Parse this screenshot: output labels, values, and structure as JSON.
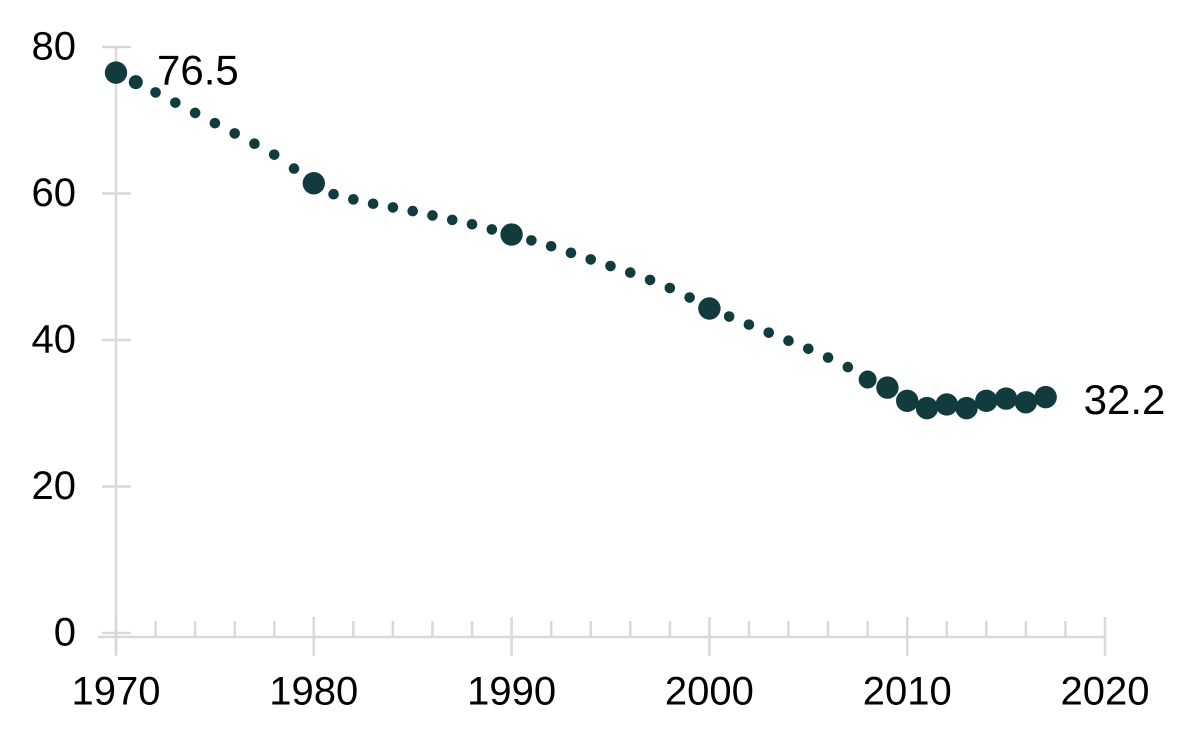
{
  "chart_data": {
    "type": "scatter",
    "title": "",
    "xlabel": "",
    "ylabel": "",
    "grid": false,
    "legend": false,
    "x_axis": {
      "min": 1970,
      "max": 2020,
      "major_ticks": [
        1970,
        1980,
        1990,
        2000,
        2010,
        2020
      ],
      "minor_tick_step": 2
    },
    "y_axis": {
      "min": 0,
      "max": 80,
      "ticks": [
        0,
        20,
        40,
        60,
        80
      ]
    },
    "colors": {
      "dot": "#113B3C",
      "axis": "#D9D9D9",
      "text": "#000000"
    },
    "annotations": [
      {
        "text": "76.5",
        "attach": "first"
      },
      {
        "text": "32.2",
        "attach": "last"
      }
    ],
    "series": [
      {
        "name": "value",
        "points": [
          {
            "year": 1970,
            "value": 76.5,
            "marker": "large"
          },
          {
            "year": 1971,
            "value": 75.2,
            "marker": "mid"
          },
          {
            "year": 1972,
            "value": 73.8,
            "marker": "small"
          },
          {
            "year": 1973,
            "value": 72.4,
            "marker": "small"
          },
          {
            "year": 1974,
            "value": 71.0,
            "marker": "small"
          },
          {
            "year": 1975,
            "value": 69.6,
            "marker": "small"
          },
          {
            "year": 1976,
            "value": 68.2,
            "marker": "small"
          },
          {
            "year": 1977,
            "value": 66.8,
            "marker": "small"
          },
          {
            "year": 1978,
            "value": 65.3,
            "marker": "small"
          },
          {
            "year": 1979,
            "value": 63.4,
            "marker": "small"
          },
          {
            "year": 1980,
            "value": 61.4,
            "marker": "large"
          },
          {
            "year": 1981,
            "value": 59.9,
            "marker": "small"
          },
          {
            "year": 1982,
            "value": 59.2,
            "marker": "small"
          },
          {
            "year": 1983,
            "value": 58.6,
            "marker": "small"
          },
          {
            "year": 1984,
            "value": 58.1,
            "marker": "small"
          },
          {
            "year": 1985,
            "value": 57.6,
            "marker": "small"
          },
          {
            "year": 1986,
            "value": 57.0,
            "marker": "small"
          },
          {
            "year": 1987,
            "value": 56.4,
            "marker": "small"
          },
          {
            "year": 1988,
            "value": 55.8,
            "marker": "small"
          },
          {
            "year": 1989,
            "value": 55.1,
            "marker": "small"
          },
          {
            "year": 1990,
            "value": 54.4,
            "marker": "large"
          },
          {
            "year": 1991,
            "value": 53.6,
            "marker": "small"
          },
          {
            "year": 1992,
            "value": 52.8,
            "marker": "small"
          },
          {
            "year": 1993,
            "value": 51.9,
            "marker": "small"
          },
          {
            "year": 1994,
            "value": 51.0,
            "marker": "small"
          },
          {
            "year": 1995,
            "value": 50.1,
            "marker": "small"
          },
          {
            "year": 1996,
            "value": 49.2,
            "marker": "small"
          },
          {
            "year": 1997,
            "value": 48.2,
            "marker": "small"
          },
          {
            "year": 1998,
            "value": 47.1,
            "marker": "small"
          },
          {
            "year": 1999,
            "value": 45.8,
            "marker": "small"
          },
          {
            "year": 2000,
            "value": 44.3,
            "marker": "large"
          },
          {
            "year": 2001,
            "value": 43.2,
            "marker": "small"
          },
          {
            "year": 2002,
            "value": 42.1,
            "marker": "small"
          },
          {
            "year": 2003,
            "value": 41.0,
            "marker": "small"
          },
          {
            "year": 2004,
            "value": 39.9,
            "marker": "small"
          },
          {
            "year": 2005,
            "value": 38.8,
            "marker": "small"
          },
          {
            "year": 2006,
            "value": 37.6,
            "marker": "small"
          },
          {
            "year": 2007,
            "value": 36.3,
            "marker": "small"
          },
          {
            "year": 2008,
            "value": 34.6,
            "marker": "medium"
          },
          {
            "year": 2009,
            "value": 33.5,
            "marker": "large"
          },
          {
            "year": 2010,
            "value": 31.7,
            "marker": "large"
          },
          {
            "year": 2011,
            "value": 30.7,
            "marker": "large"
          },
          {
            "year": 2012,
            "value": 31.2,
            "marker": "large"
          },
          {
            "year": 2013,
            "value": 30.7,
            "marker": "large"
          },
          {
            "year": 2014,
            "value": 31.7,
            "marker": "large"
          },
          {
            "year": 2015,
            "value": 32.0,
            "marker": "large"
          },
          {
            "year": 2016,
            "value": 31.5,
            "marker": "large"
          },
          {
            "year": 2017,
            "value": 32.2,
            "marker": "large"
          }
        ]
      }
    ]
  }
}
